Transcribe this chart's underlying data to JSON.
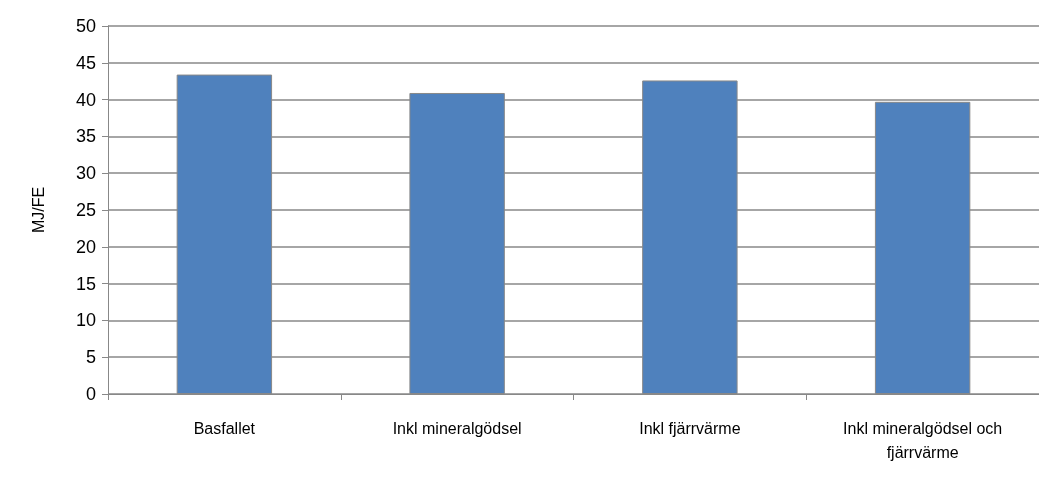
{
  "chart_data": {
    "type": "bar",
    "ylabel": "MJ/FE",
    "categories": [
      "Basfallet",
      "Inkl mineralgödsel",
      "Inkl fjärrvärme",
      "Inkl mineralgödsel och fjärrvärme"
    ],
    "values": [
      43.4,
      40.9,
      42.6,
      39.7
    ],
    "color": "#4f81bd",
    "ylim": [
      0,
      50
    ],
    "yticks": [
      0,
      5,
      10,
      15,
      20,
      25,
      30,
      35,
      40,
      45,
      50
    ],
    "grid": "y"
  }
}
